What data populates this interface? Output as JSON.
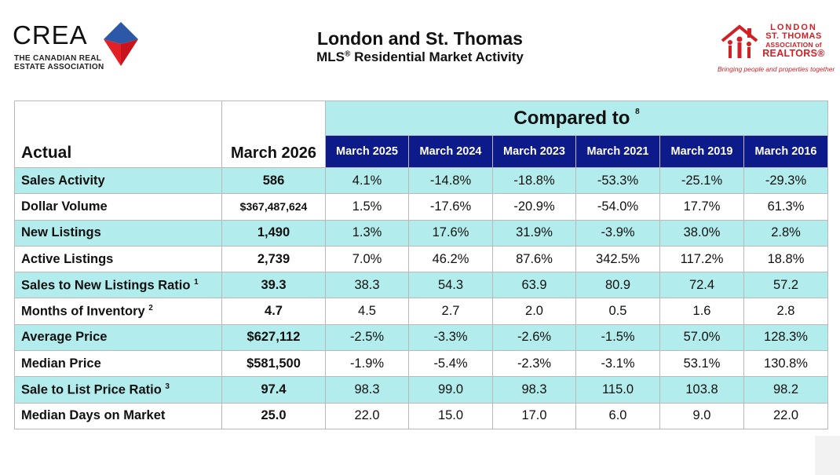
{
  "header": {
    "left_logo": {
      "word": "CREA",
      "subtitle_line1": "THE CANADIAN REAL",
      "subtitle_line2": "ESTATE ASSOCIATION",
      "colors": [
        "#e32026",
        "#2b59a8"
      ]
    },
    "title": "London and St. Thomas",
    "subtitle_main": "MLS",
    "subtitle_sup": "®",
    "subtitle_rest": " Residential Market Activity",
    "right_logo": {
      "line1": "LONDON",
      "line2": "ST. THOMAS",
      "line3": "ASSOCIATION of",
      "line4": "REALTORS®",
      "tagline": "Bringing people and properties together",
      "color": "#d31f26"
    }
  },
  "table": {
    "actual_label": "Actual",
    "current_month": "March 2026",
    "compared_label": "Compared to",
    "compared_sup": "8",
    "years": [
      "March 2025",
      "March 2024",
      "March 2023",
      "March 2021",
      "March 2019",
      "March 2016"
    ],
    "rows": [
      {
        "label": "Sales Activity",
        "sup": "",
        "current": "586",
        "values": [
          "4.1%",
          "-14.8%",
          "-18.8%",
          "-53.3%",
          "-25.1%",
          "-29.3%"
        ]
      },
      {
        "label": "Dollar Volume",
        "sup": "",
        "current": "$367,487,624",
        "values": [
          "1.5%",
          "-17.6%",
          "-20.9%",
          "-54.0%",
          "17.7%",
          "61.3%"
        ]
      },
      {
        "label": "New Listings",
        "sup": "",
        "current": "1,490",
        "values": [
          "1.3%",
          "17.6%",
          "31.9%",
          "-3.9%",
          "38.0%",
          "2.8%"
        ]
      },
      {
        "label": "Active Listings",
        "sup": "",
        "current": "2,739",
        "values": [
          "7.0%",
          "46.2%",
          "87.6%",
          "342.5%",
          "117.2%",
          "18.8%"
        ]
      },
      {
        "label": "Sales to New Listings Ratio",
        "sup": "1",
        "current": "39.3",
        "values": [
          "38.3",
          "54.3",
          "63.9",
          "80.9",
          "72.4",
          "57.2"
        ]
      },
      {
        "label": "Months of Inventory",
        "sup": "2",
        "current": "4.7",
        "values": [
          "4.5",
          "2.7",
          "2.0",
          "0.5",
          "1.6",
          "2.8"
        ]
      },
      {
        "label": "Average Price",
        "sup": "",
        "current": "$627,112",
        "values": [
          "-2.5%",
          "-3.3%",
          "-2.6%",
          "-1.5%",
          "57.0%",
          "128.3%"
        ]
      },
      {
        "label": "Median Price",
        "sup": "",
        "current": "$581,500",
        "values": [
          "-1.9%",
          "-5.4%",
          "-2.3%",
          "-3.1%",
          "53.1%",
          "130.8%"
        ]
      },
      {
        "label": "Sale to List Price Ratio",
        "sup": "3",
        "current": "97.4",
        "values": [
          "98.3",
          "99.0",
          "98.3",
          "115.0",
          "103.8",
          "98.2"
        ]
      },
      {
        "label": "Median Days on Market",
        "sup": "",
        "current": "25.0",
        "values": [
          "22.0",
          "15.0",
          "17.0",
          "6.0",
          "9.0",
          "22.0"
        ]
      }
    ],
    "colors": {
      "teal": "#b2ecec",
      "navy": "#0d1a8a"
    }
  }
}
